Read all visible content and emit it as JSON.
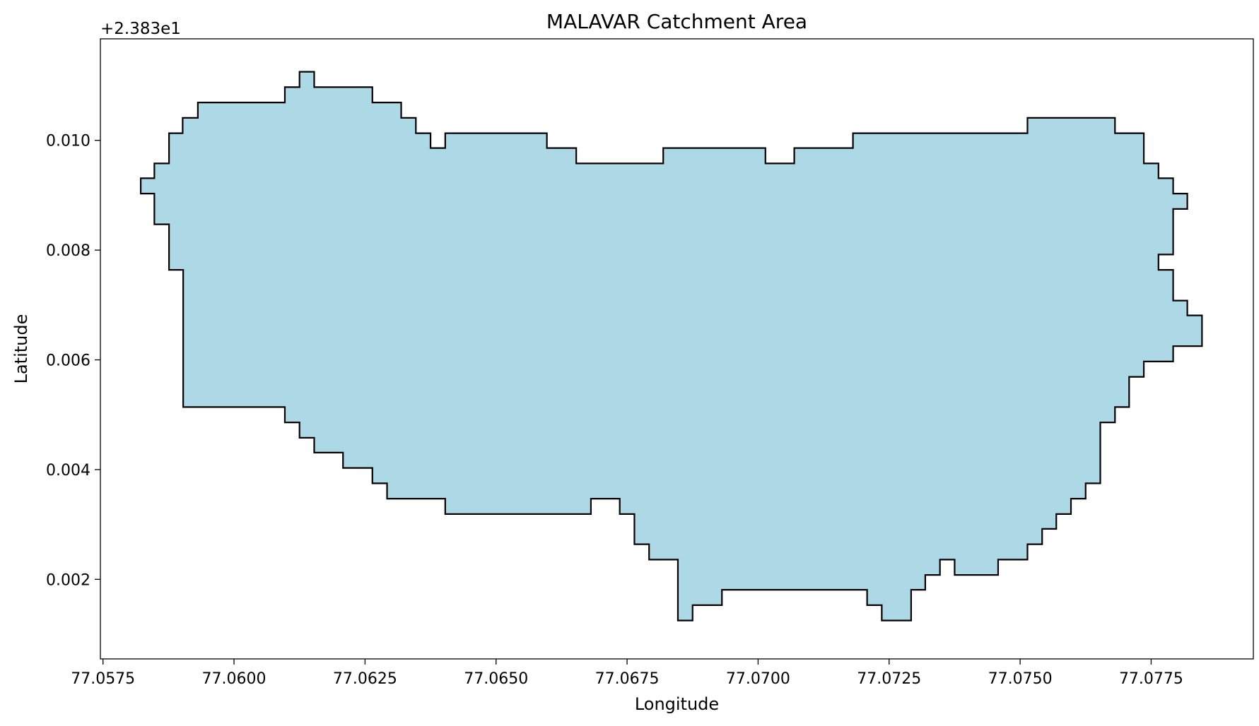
{
  "chart_data": {
    "type": "area",
    "title": "MALAVAR Catchment Area",
    "xlabel": "Longitude",
    "ylabel": "Latitude",
    "y_offset_label": "+2.383e1",
    "y_offset": 23.83,
    "xlim": [
      77.05745,
      77.07945
    ],
    "ylim": [
      0.00055,
      0.01185
    ],
    "x_ticks": [
      77.0575,
      77.06,
      77.0625,
      77.065,
      77.0675,
      77.07,
      77.0725,
      77.075,
      77.0775
    ],
    "x_tick_labels": [
      "77.0575",
      "77.0600",
      "77.0625",
      "77.0650",
      "77.0675",
      "77.0700",
      "77.0725",
      "77.0750",
      "77.0775"
    ],
    "y_ticks": [
      0.002,
      0.004,
      0.006,
      0.008,
      0.01
    ],
    "y_tick_labels": [
      "0.002",
      "0.004",
      "0.006",
      "0.008",
      "0.010"
    ],
    "grid": false,
    "fill_color": "#add8e6",
    "edge_color": "#000000",
    "polygon": [
      [
        77.05822,
        0.00931
      ],
      [
        77.05848,
        0.00931
      ],
      [
        77.05848,
        0.00958
      ],
      [
        77.05876,
        0.00958
      ],
      [
        77.05876,
        0.01013
      ],
      [
        77.05902,
        0.01013
      ],
      [
        77.05902,
        0.01041
      ],
      [
        77.05931,
        0.01041
      ],
      [
        77.05931,
        0.01069
      ],
      [
        77.06097,
        0.01069
      ],
      [
        77.06097,
        0.01097
      ],
      [
        77.06125,
        0.01097
      ],
      [
        77.06125,
        0.01125
      ],
      [
        77.06153,
        0.01125
      ],
      [
        77.06153,
        0.01097
      ],
      [
        77.06264,
        0.01097
      ],
      [
        77.06264,
        0.01069
      ],
      [
        77.06319,
        0.01069
      ],
      [
        77.06319,
        0.01041
      ],
      [
        77.06347,
        0.01041
      ],
      [
        77.06347,
        0.01013
      ],
      [
        77.06375,
        0.01013
      ],
      [
        77.06375,
        0.00986
      ],
      [
        77.06403,
        0.00986
      ],
      [
        77.06403,
        0.01013
      ],
      [
        77.06597,
        0.01013
      ],
      [
        77.06597,
        0.00986
      ],
      [
        77.06653,
        0.00986
      ],
      [
        77.06653,
        0.00958
      ],
      [
        77.06819,
        0.00958
      ],
      [
        77.06819,
        0.00986
      ],
      [
        77.07014,
        0.00986
      ],
      [
        77.07014,
        0.00958
      ],
      [
        77.07069,
        0.00958
      ],
      [
        77.07069,
        0.00986
      ],
      [
        77.07181,
        0.00986
      ],
      [
        77.07181,
        0.01013
      ],
      [
        77.07514,
        0.01013
      ],
      [
        77.07514,
        0.01041
      ],
      [
        77.07681,
        0.01041
      ],
      [
        77.07681,
        0.01013
      ],
      [
        77.07736,
        0.01013
      ],
      [
        77.07736,
        0.00958
      ],
      [
        77.07764,
        0.00958
      ],
      [
        77.07764,
        0.00931
      ],
      [
        77.07792,
        0.00931
      ],
      [
        77.07792,
        0.00903
      ],
      [
        77.07819,
        0.00903
      ],
      [
        77.07819,
        0.00875
      ],
      [
        77.07792,
        0.00875
      ],
      [
        77.07792,
        0.00792
      ],
      [
        77.07764,
        0.00792
      ],
      [
        77.07764,
        0.00764
      ],
      [
        77.07792,
        0.00764
      ],
      [
        77.07792,
        0.00708
      ],
      [
        77.07819,
        0.00708
      ],
      [
        77.07819,
        0.00681
      ],
      [
        77.07847,
        0.00681
      ],
      [
        77.07847,
        0.00625
      ],
      [
        77.07792,
        0.00625
      ],
      [
        77.07792,
        0.00597
      ],
      [
        77.07736,
        0.00597
      ],
      [
        77.07736,
        0.00569
      ],
      [
        77.07708,
        0.00569
      ],
      [
        77.07708,
        0.00514
      ],
      [
        77.07681,
        0.00514
      ],
      [
        77.07681,
        0.00486
      ],
      [
        77.07653,
        0.00486
      ],
      [
        77.07653,
        0.00375
      ],
      [
        77.07625,
        0.00375
      ],
      [
        77.07625,
        0.00347
      ],
      [
        77.07597,
        0.00347
      ],
      [
        77.07597,
        0.00319
      ],
      [
        77.07569,
        0.00319
      ],
      [
        77.07569,
        0.00292
      ],
      [
        77.07542,
        0.00292
      ],
      [
        77.07542,
        0.00264
      ],
      [
        77.07514,
        0.00264
      ],
      [
        77.07514,
        0.00236
      ],
      [
        77.07458,
        0.00236
      ],
      [
        77.07458,
        0.00208
      ],
      [
        77.07375,
        0.00208
      ],
      [
        77.07375,
        0.00236
      ],
      [
        77.07347,
        0.00236
      ],
      [
        77.07347,
        0.00208
      ],
      [
        77.07319,
        0.00208
      ],
      [
        77.07319,
        0.00181
      ],
      [
        77.07292,
        0.00181
      ],
      [
        77.07292,
        0.00125
      ],
      [
        77.07236,
        0.00125
      ],
      [
        77.07236,
        0.00153
      ],
      [
        77.07208,
        0.00153
      ],
      [
        77.07208,
        0.00181
      ],
      [
        77.06931,
        0.00181
      ],
      [
        77.06931,
        0.00153
      ],
      [
        77.06875,
        0.00153
      ],
      [
        77.06875,
        0.00125
      ],
      [
        77.06847,
        0.00125
      ],
      [
        77.06847,
        0.00236
      ],
      [
        77.06792,
        0.00236
      ],
      [
        77.06792,
        0.00264
      ],
      [
        77.06764,
        0.00264
      ],
      [
        77.06764,
        0.00319
      ],
      [
        77.06736,
        0.00319
      ],
      [
        77.06736,
        0.00347
      ],
      [
        77.06681,
        0.00347
      ],
      [
        77.06681,
        0.00319
      ],
      [
        77.06403,
        0.00319
      ],
      [
        77.06403,
        0.00347
      ],
      [
        77.06292,
        0.00347
      ],
      [
        77.06292,
        0.00375
      ],
      [
        77.06264,
        0.00375
      ],
      [
        77.06264,
        0.00403
      ],
      [
        77.06208,
        0.00403
      ],
      [
        77.06208,
        0.00431
      ],
      [
        77.06153,
        0.00431
      ],
      [
        77.06153,
        0.00458
      ],
      [
        77.06125,
        0.00458
      ],
      [
        77.06125,
        0.00486
      ],
      [
        77.06097,
        0.00486
      ],
      [
        77.06097,
        0.00514
      ],
      [
        77.05903,
        0.00514
      ],
      [
        77.05903,
        0.00764
      ],
      [
        77.05876,
        0.00764
      ],
      [
        77.05876,
        0.00847
      ],
      [
        77.05848,
        0.00847
      ],
      [
        77.05848,
        0.00903
      ],
      [
        77.05822,
        0.00903
      ]
    ]
  }
}
